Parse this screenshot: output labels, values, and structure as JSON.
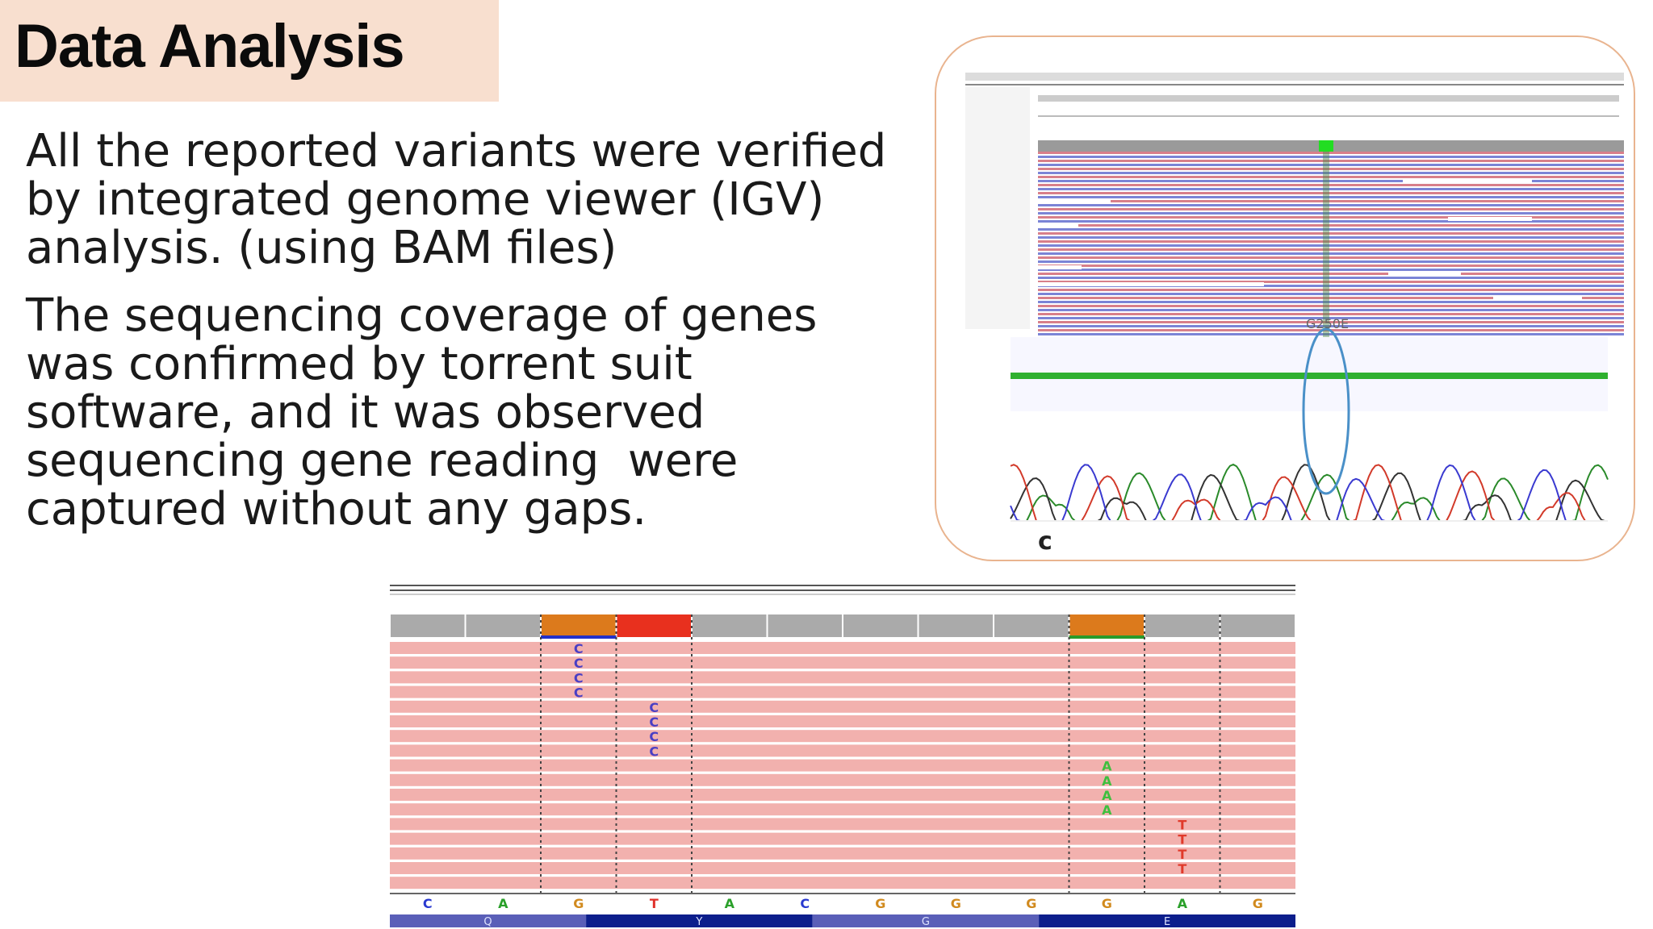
{
  "slide": {
    "title": "Data Analysis",
    "paragraph1": [
      "All the reported variants were verified",
      "by integrated genome viewer (IGV)",
      "analysis. (using BAM files)"
    ],
    "paragraph2": [
      "The sequencing coverage of genes",
      "was confirmed by torrent suit",
      "software, and it was observed",
      "sequencing gene reading  were",
      "captured without any gaps."
    ]
  },
  "figure_top_right": {
    "variant_label": "G250E",
    "panel_label": "c"
  },
  "igv_panel": {
    "reference_bases": [
      "C",
      "A",
      "G",
      "T",
      "A",
      "C",
      "G",
      "G",
      "G",
      "G",
      "A",
      "G"
    ],
    "amino_acids": [
      "Q",
      "Y",
      "G",
      "E"
    ],
    "mismatch_groups": [
      {
        "base": "C",
        "column": 2,
        "count": 4,
        "color": "#4a3fc4"
      },
      {
        "base": "C",
        "column": 3,
        "count": 4,
        "color": "#4a3fc4"
      },
      {
        "base": "A",
        "column": 9,
        "count": 4,
        "color": "#3fbf3f"
      },
      {
        "base": "T",
        "column": 10,
        "count": 4,
        "color": "#e03a2a"
      }
    ],
    "colors": {
      "read": "#f2b1ae",
      "coverage_orange": "#dc7a1c",
      "coverage_red": "#e8301e",
      "coverage_gray": "#aaaaaa",
      "aa_dark": "#0c1e8c",
      "aa_light": "#5a5fb8"
    }
  }
}
